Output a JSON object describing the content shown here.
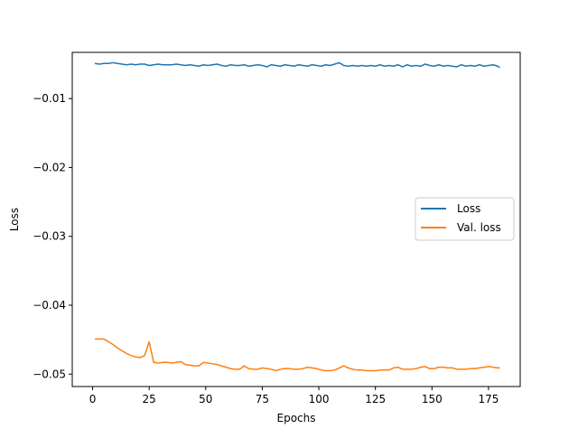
{
  "chart_data": {
    "type": "line",
    "title": "",
    "xlabel": "Epochs",
    "ylabel": "Loss",
    "xlim": [
      -9,
      189
    ],
    "ylim": [
      -0.0518,
      -0.0033
    ],
    "xticks": [
      0,
      25,
      50,
      75,
      100,
      125,
      150,
      175
    ],
    "yticks": [
      -0.01,
      -0.02,
      -0.03,
      -0.04,
      -0.05
    ],
    "xtick_labels": [
      "0",
      "25",
      "50",
      "75",
      "100",
      "125",
      "150",
      "175"
    ],
    "ytick_labels": [
      "−0.01",
      "−0.02",
      "−0.03",
      "−0.04",
      "−0.05"
    ],
    "grid": false,
    "legend": {
      "placement": "center-right"
    },
    "series": [
      {
        "name": "Loss",
        "color": "#1f77b4",
        "x": [
          1,
          3,
          5,
          7,
          9,
          11,
          13,
          15,
          17,
          19,
          21,
          23,
          25,
          27,
          29,
          31,
          33,
          35,
          37,
          39,
          41,
          43,
          45,
          47,
          49,
          51,
          53,
          55,
          57,
          59,
          61,
          63,
          65,
          67,
          69,
          71,
          73,
          75,
          77,
          79,
          81,
          83,
          85,
          87,
          89,
          91,
          93,
          95,
          97,
          99,
          101,
          103,
          105,
          107,
          109,
          111,
          113,
          115,
          117,
          119,
          121,
          123,
          125,
          127,
          129,
          131,
          133,
          135,
          137,
          139,
          141,
          143,
          145,
          147,
          149,
          151,
          153,
          155,
          157,
          159,
          161,
          163,
          165,
          167,
          169,
          171,
          173,
          175,
          177,
          179,
          180
        ],
        "values": [
          -0.0049,
          -0.005,
          -0.0049,
          -0.0049,
          -0.0048,
          -0.0049,
          -0.005,
          -0.0051,
          -0.005,
          -0.0051,
          -0.005,
          -0.005,
          -0.0052,
          -0.0051,
          -0.005,
          -0.0051,
          -0.0051,
          -0.0051,
          -0.005,
          -0.0051,
          -0.0052,
          -0.0051,
          -0.0052,
          -0.0053,
          -0.0051,
          -0.0052,
          -0.0051,
          -0.005,
          -0.0052,
          -0.0053,
          -0.0051,
          -0.0052,
          -0.0052,
          -0.0051,
          -0.0053,
          -0.0052,
          -0.0051,
          -0.0052,
          -0.0054,
          -0.0051,
          -0.0052,
          -0.0053,
          -0.0051,
          -0.0052,
          -0.0053,
          -0.0051,
          -0.0052,
          -0.0053,
          -0.0051,
          -0.0052,
          -0.0053,
          -0.0051,
          -0.0052,
          -0.005,
          -0.0048,
          -0.0052,
          -0.0053,
          -0.0052,
          -0.0053,
          -0.0052,
          -0.0053,
          -0.0052,
          -0.0053,
          -0.0051,
          -0.0053,
          -0.0052,
          -0.0053,
          -0.0051,
          -0.0054,
          -0.0051,
          -0.0053,
          -0.0052,
          -0.0053,
          -0.005,
          -0.0052,
          -0.0053,
          -0.0051,
          -0.0053,
          -0.0052,
          -0.0053,
          -0.0054,
          -0.0051,
          -0.0053,
          -0.0052,
          -0.0053,
          -0.0051,
          -0.0053,
          -0.0052,
          -0.0051,
          -0.0053,
          -0.0055
        ]
      },
      {
        "name": "Val. loss",
        "color": "#ff7f0e",
        "x": [
          1,
          3,
          5,
          7,
          9,
          11,
          13,
          15,
          17,
          19,
          21,
          23,
          25,
          27,
          29,
          31,
          33,
          35,
          37,
          39,
          41,
          43,
          45,
          47,
          49,
          51,
          53,
          55,
          57,
          59,
          61,
          63,
          65,
          67,
          69,
          71,
          73,
          75,
          77,
          79,
          81,
          83,
          85,
          87,
          89,
          91,
          93,
          95,
          97,
          99,
          101,
          103,
          105,
          107,
          109,
          111,
          113,
          115,
          117,
          119,
          121,
          123,
          125,
          127,
          129,
          131,
          133,
          135,
          137,
          139,
          141,
          143,
          145,
          147,
          149,
          151,
          153,
          155,
          157,
          159,
          161,
          163,
          165,
          167,
          169,
          171,
          173,
          175,
          177,
          179,
          180
        ],
        "values": [
          -0.0449,
          -0.0449,
          -0.0449,
          -0.0453,
          -0.0457,
          -0.0462,
          -0.0466,
          -0.047,
          -0.0473,
          -0.0475,
          -0.0476,
          -0.0473,
          -0.0453,
          -0.0483,
          -0.0484,
          -0.0483,
          -0.0483,
          -0.0484,
          -0.0483,
          -0.0482,
          -0.0486,
          -0.0487,
          -0.0488,
          -0.0488,
          -0.0483,
          -0.0484,
          -0.0485,
          -0.0486,
          -0.0488,
          -0.049,
          -0.0492,
          -0.0493,
          -0.0493,
          -0.0488,
          -0.0492,
          -0.0493,
          -0.0493,
          -0.0491,
          -0.0492,
          -0.0493,
          -0.0495,
          -0.0493,
          -0.0492,
          -0.0492,
          -0.0493,
          -0.0493,
          -0.0492,
          -0.049,
          -0.0491,
          -0.0492,
          -0.0494,
          -0.0495,
          -0.0495,
          -0.0494,
          -0.0491,
          -0.0488,
          -0.0491,
          -0.0493,
          -0.0494,
          -0.0494,
          -0.0495,
          -0.0495,
          -0.0495,
          -0.0494,
          -0.0494,
          -0.0494,
          -0.0491,
          -0.049,
          -0.0493,
          -0.0493,
          -0.0493,
          -0.0492,
          -0.049,
          -0.0489,
          -0.0492,
          -0.0492,
          -0.049,
          -0.049,
          -0.0491,
          -0.0491,
          -0.0493,
          -0.0493,
          -0.0493,
          -0.0492,
          -0.0492,
          -0.0491,
          -0.049,
          -0.0489,
          -0.049,
          -0.0491,
          -0.0491
        ]
      }
    ]
  }
}
